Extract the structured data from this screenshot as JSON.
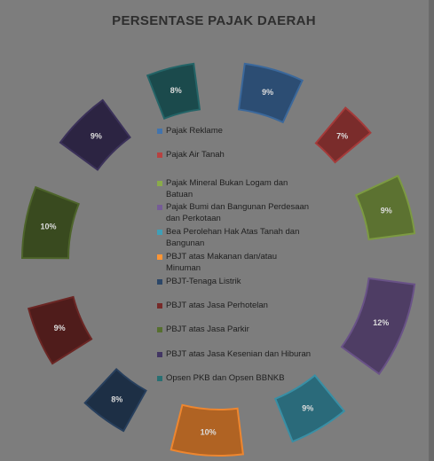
{
  "chart_data": {
    "type": "pie",
    "title": "PERSENTASE PAJAK DAERAH",
    "legend_position": "center",
    "categories": [
      "Pajak Reklame",
      "Pajak Air Tanah",
      "Pajak Mineral Bukan Logam dan Batuan",
      "Pajak Bumi dan Bangunan Perdesaan dan Perkotaan",
      "Bea Perolehan Hak Atas Tanah dan Bangunan",
      "PBJT atas Makanan dan/atau Minuman",
      "PBJT-Tenaga Listrik",
      "PBJT atas Jasa Perhotelan",
      "PBJT atas Jasa Parkir",
      "PBJT atas Jasa Kesenian dan Hiburan",
      "Opsen PKB dan Opsen BBNKB"
    ],
    "values": [
      9,
      7,
      9,
      12,
      9,
      10,
      8,
      9,
      10,
      9,
      8
    ],
    "data_labels": [
      "9%",
      "7%",
      "9%",
      "12%",
      "9%",
      "10%",
      "8%",
      "9%",
      "10%",
      "9%",
      "8%"
    ],
    "colors": [
      "#2c4d73",
      "#7a2c2b",
      "#5c7231",
      "#4e3d64",
      "#2a6a7a",
      "#b06323",
      "#1d2f45",
      "#4f1c1b",
      "#394a1f",
      "#2c2442",
      "#1b4a4c"
    ]
  }
}
